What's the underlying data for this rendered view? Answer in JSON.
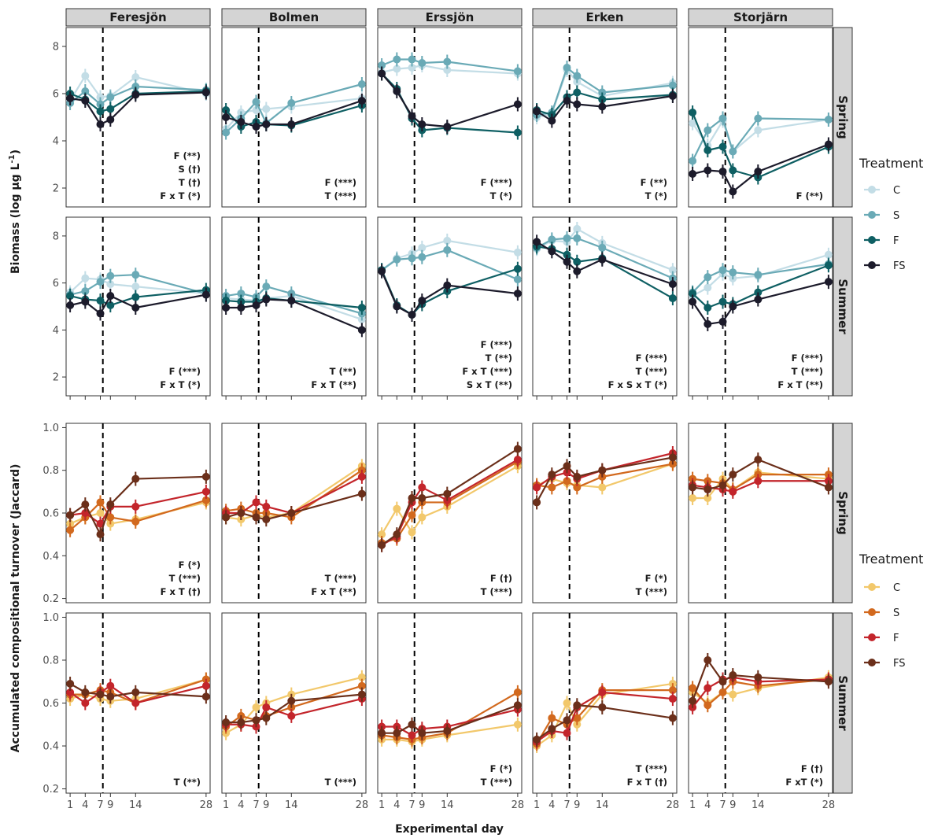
{
  "chart_data": {
    "type": "line",
    "lakes": [
      "Feresjön",
      "Bolmen",
      "Erssjön",
      "Erken",
      "Storjärn"
    ],
    "seasons": [
      "Spring",
      "Summer"
    ],
    "xlabel": "Experimental day",
    "x": [
      1,
      4,
      7,
      9,
      14,
      28
    ],
    "x_ticks": [
      1,
      4,
      7,
      9,
      14,
      28
    ],
    "vline_day": 7.5,
    "blocks": [
      {
        "id": "biomass",
        "ylabel_main": "Biomass (log µg L",
        "ylabel_sup": "-1",
        "ylabel_end": ")",
        "ylim": [
          1.2,
          8.8
        ],
        "y_ticks": [
          "2",
          "4",
          "6",
          "8"
        ],
        "legend_title": "Treatment",
        "treatments": [
          {
            "name": "C",
            "color": "#c3dde6"
          },
          {
            "name": "S",
            "color": "#6aaab6"
          },
          {
            "name": "F",
            "color": "#0e5f63"
          },
          {
            "name": "FS",
            "color": "#1c1b2b"
          }
        ],
        "panels": [
          {
            "lake": "Feresjön",
            "season": "Spring",
            "stats": [
              "F (**)",
              "S (†)",
              "T (†)",
              "F x T (*)"
            ],
            "series": [
              [
                5.7,
                6.75,
                5.85,
                5.9,
                6.7,
                6.0
              ],
              [
                5.6,
                6.1,
                5.55,
                5.85,
                6.3,
                6.15
              ],
              [
                6.0,
                5.75,
                5.25,
                5.35,
                6.0,
                6.1
              ],
              [
                5.8,
                5.7,
                4.7,
                4.9,
                5.95,
                6.05
              ]
            ]
          },
          {
            "lake": "Bolmen",
            "season": "Spring",
            "stats": [
              "F (***)",
              "T (***)"
            ],
            "series": [
              [
                4.5,
                5.2,
                5.3,
                5.35,
                5.45,
                5.8
              ],
              [
                4.35,
                4.95,
                5.65,
                4.75,
                5.6,
                6.4
              ],
              [
                5.3,
                4.6,
                4.8,
                4.7,
                4.65,
                5.5
              ],
              [
                5.0,
                4.8,
                4.6,
                4.7,
                4.7,
                5.7
              ]
            ]
          },
          {
            "lake": "Erssjön",
            "season": "Spring",
            "stats": [
              "F (***)",
              "T (*)"
            ],
            "series": [
              [
                6.9,
                7.05,
                7.1,
                7.2,
                7.0,
                6.85
              ],
              [
                7.2,
                7.45,
                7.45,
                7.3,
                7.35,
                6.95
              ],
              [
                6.85,
                6.2,
                4.95,
                4.45,
                4.55,
                4.35
              ],
              [
                6.85,
                6.1,
                5.05,
                4.7,
                4.6,
                5.55
              ]
            ]
          },
          {
            "lake": "Erken",
            "season": "Spring",
            "stats": [
              "F (**)",
              "T (*)"
            ],
            "series": [
              [
                5.0,
                5.15,
                7.0,
                6.5,
                5.9,
                6.45
              ],
              [
                5.1,
                5.2,
                7.1,
                6.75,
                6.05,
                6.35
              ],
              [
                5.3,
                5.1,
                5.85,
                6.05,
                5.75,
                5.95
              ],
              [
                5.25,
                4.85,
                5.7,
                5.55,
                5.45,
                5.9
              ]
            ]
          },
          {
            "lake": "Storjärn",
            "season": "Spring",
            "stats": [
              "F (**)"
            ],
            "series": [
              [
                4.75,
                3.8,
                4.85,
                3.55,
                4.45,
                4.9
              ],
              [
                3.15,
                4.45,
                4.95,
                3.55,
                4.95,
                4.9
              ],
              [
                5.2,
                3.6,
                3.75,
                2.75,
                2.45,
                3.75
              ],
              [
                2.6,
                2.75,
                2.7,
                1.85,
                2.7,
                3.85
              ]
            ]
          },
          {
            "lake": "Feresjön",
            "season": "Summer",
            "stats": [
              "F (***)",
              "F x T (*)"
            ],
            "series": [
              [
                5.6,
                6.2,
                6.15,
                5.95,
                5.85,
                5.55
              ],
              [
                5.5,
                5.65,
                6.05,
                6.3,
                6.35,
                5.55
              ],
              [
                5.45,
                5.3,
                5.25,
                5.05,
                5.4,
                5.7
              ],
              [
                5.05,
                5.2,
                4.7,
                5.45,
                4.95,
                5.5
              ]
            ]
          },
          {
            "lake": "Bolmen",
            "season": "Summer",
            "stats": [
              "T (**)",
              "F x T (**)"
            ],
            "series": [
              [
                5.35,
                5.3,
                5.25,
                5.35,
                5.45,
                4.45
              ],
              [
                5.45,
                5.55,
                5.4,
                5.85,
                5.55,
                4.7
              ],
              [
                5.25,
                5.2,
                5.2,
                5.35,
                5.25,
                4.95
              ],
              [
                4.95,
                4.95,
                5.05,
                5.3,
                5.25,
                4.0
              ]
            ]
          },
          {
            "lake": "Erssjön",
            "season": "Summer",
            "stats": [
              "F (***)",
              "T (**)",
              "F x T (***)",
              "S x T (**)"
            ],
            "series": [
              [
                6.55,
                7.05,
                7.25,
                7.5,
                7.8,
                7.3
              ],
              [
                6.55,
                7.0,
                7.05,
                7.1,
                7.4,
                6.15
              ],
              [
                6.55,
                5.05,
                4.65,
                5.1,
                5.65,
                6.6
              ],
              [
                6.5,
                5.0,
                4.65,
                5.25,
                5.9,
                5.55
              ]
            ]
          },
          {
            "lake": "Erken",
            "season": "Summer",
            "stats": [
              "F (***)",
              "T (***)",
              "F x S x T (*)"
            ],
            "series": [
              [
                7.45,
                7.8,
                7.75,
                8.3,
                7.7,
                6.55
              ],
              [
                7.5,
                7.85,
                7.9,
                7.9,
                7.5,
                6.2
              ],
              [
                7.55,
                7.45,
                7.2,
                6.9,
                7.05,
                5.35
              ],
              [
                7.75,
                7.35,
                6.9,
                6.5,
                7.0,
                5.95
              ]
            ]
          },
          {
            "lake": "Storjärn",
            "season": "Summer",
            "stats": [
              "F (***)",
              "T (***)",
              "F x T (**)"
            ],
            "series": [
              [
                5.45,
                5.8,
                6.4,
                6.2,
                6.3,
                7.2
              ],
              [
                5.6,
                6.25,
                6.55,
                6.45,
                6.35,
                6.8
              ],
              [
                5.55,
                4.95,
                5.2,
                5.1,
                5.6,
                6.75
              ],
              [
                5.2,
                4.25,
                4.35,
                5.0,
                5.3,
                6.05
              ]
            ]
          }
        ]
      },
      {
        "id": "turnover",
        "ylabel_main": "Accumulated compositional turnover (Jaccard)",
        "ylabel_sup": "",
        "ylabel_end": "",
        "ylim": [
          0.18,
          1.02
        ],
        "y_ticks": [
          "0.2",
          "0.4",
          "0.6",
          "0.8",
          "1.0"
        ],
        "legend_title": "Treatment",
        "treatments": [
          {
            "name": "C",
            "color": "#f2c86b"
          },
          {
            "name": "S",
            "color": "#d2691e"
          },
          {
            "name": "F",
            "color": "#c3252b"
          },
          {
            "name": "FS",
            "color": "#6b2f1a"
          }
        ],
        "panels": [
          {
            "lake": "Feresjön",
            "season": "Spring",
            "stats": [
              "F (*)",
              "T (***)",
              "F x T (†)"
            ],
            "series": [
              [
                0.55,
                0.58,
                0.6,
                0.55,
                0.57,
                0.65
              ],
              [
                0.52,
                0.58,
                0.65,
                0.58,
                0.56,
                0.66
              ],
              [
                0.59,
                0.6,
                0.55,
                0.63,
                0.63,
                0.7
              ],
              [
                0.59,
                0.64,
                0.5,
                0.64,
                0.76,
                0.77
              ]
            ]
          },
          {
            "lake": "Bolmen",
            "season": "Spring",
            "stats": [
              "T (***)",
              "F x T (**)"
            ],
            "series": [
              [
                0.58,
                0.57,
                0.59,
                0.58,
                0.6,
                0.82
              ],
              [
                0.61,
                0.62,
                0.6,
                0.6,
                0.58,
                0.8
              ],
              [
                0.6,
                0.6,
                0.65,
                0.63,
                0.6,
                0.77
              ],
              [
                0.58,
                0.6,
                0.58,
                0.57,
                0.6,
                0.69
              ]
            ]
          },
          {
            "lake": "Erssjön",
            "season": "Spring",
            "stats": [
              "F (†)",
              "T (***)"
            ],
            "series": [
              [
                0.5,
                0.62,
                0.51,
                0.58,
                0.63,
                0.82
              ],
              [
                0.46,
                0.48,
                0.59,
                0.65,
                0.65,
                0.84
              ],
              [
                0.45,
                0.49,
                0.65,
                0.72,
                0.66,
                0.85
              ],
              [
                0.45,
                0.5,
                0.67,
                0.67,
                0.69,
                0.9
              ]
            ]
          },
          {
            "lake": "Erken",
            "season": "Spring",
            "stats": [
              "F (*)",
              "T (***)"
            ],
            "series": [
              [
                0.73,
                0.76,
                0.74,
                0.73,
                0.72,
                0.83
              ],
              [
                0.73,
                0.72,
                0.75,
                0.72,
                0.77,
                0.83
              ],
              [
                0.72,
                0.77,
                0.79,
                0.76,
                0.8,
                0.88
              ],
              [
                0.65,
                0.78,
                0.82,
                0.77,
                0.8,
                0.86
              ]
            ]
          },
          {
            "lake": "Storjärn",
            "season": "Spring",
            "stats": [],
            "series": [
              [
                0.67,
                0.67,
                0.76,
                0.71,
                0.79,
                0.76
              ],
              [
                0.76,
                0.75,
                0.74,
                0.71,
                0.78,
                0.78
              ],
              [
                0.73,
                0.72,
                0.71,
                0.7,
                0.75,
                0.75
              ],
              [
                0.72,
                0.71,
                0.73,
                0.78,
                0.85,
                0.72
              ]
            ]
          },
          {
            "lake": "Feresjön",
            "season": "Summer",
            "stats": [
              "T (**)"
            ],
            "series": [
              [
                0.62,
                0.64,
                0.62,
                0.61,
                0.62,
                0.71
              ],
              [
                0.64,
                0.64,
                0.66,
                0.65,
                0.6,
                0.71
              ],
              [
                0.65,
                0.6,
                0.65,
                0.68,
                0.6,
                0.68
              ],
              [
                0.69,
                0.65,
                0.64,
                0.63,
                0.65,
                0.63
              ]
            ]
          },
          {
            "lake": "Bolmen",
            "season": "Summer",
            "stats": [
              "T (***)"
            ],
            "series": [
              [
                0.46,
                0.5,
                0.58,
                0.6,
                0.64,
                0.72
              ],
              [
                0.49,
                0.54,
                0.52,
                0.54,
                0.58,
                0.68
              ],
              [
                0.5,
                0.5,
                0.49,
                0.58,
                0.54,
                0.62
              ],
              [
                0.51,
                0.51,
                0.52,
                0.53,
                0.61,
                0.64
              ]
            ]
          },
          {
            "lake": "Erssjön",
            "season": "Summer",
            "stats": [
              "F (*)",
              "T (***)"
            ],
            "series": [
              [
                0.43,
                0.43,
                0.42,
                0.43,
                0.45,
                0.5
              ],
              [
                0.45,
                0.44,
                0.43,
                0.44,
                0.46,
                0.65
              ],
              [
                0.49,
                0.49,
                0.45,
                0.48,
                0.49,
                0.57
              ],
              [
                0.46,
                0.46,
                0.5,
                0.46,
                0.47,
                0.59
              ]
            ]
          },
          {
            "lake": "Erken",
            "season": "Summer",
            "stats": [
              "T (***)",
              "F x T (†)"
            ],
            "series": [
              [
                0.4,
                0.45,
                0.6,
                0.5,
                0.64,
                0.69
              ],
              [
                0.41,
                0.53,
                0.5,
                0.53,
                0.66,
                0.66
              ],
              [
                0.42,
                0.47,
                0.46,
                0.58,
                0.65,
                0.62
              ],
              [
                0.43,
                0.48,
                0.52,
                0.59,
                0.58,
                0.53
              ]
            ]
          },
          {
            "lake": "Storjärn",
            "season": "Summer",
            "stats": [
              "F (†)",
              "F xT (*)"
            ],
            "series": [
              [
                0.65,
                0.6,
                0.65,
                0.64,
                0.67,
                0.72
              ],
              [
                0.67,
                0.59,
                0.65,
                0.7,
                0.68,
                0.71
              ],
              [
                0.58,
                0.67,
                0.71,
                0.72,
                0.7,
                0.71
              ],
              [
                0.61,
                0.8,
                0.7,
                0.73,
                0.72,
                0.7
              ]
            ]
          }
        ]
      }
    ]
  }
}
